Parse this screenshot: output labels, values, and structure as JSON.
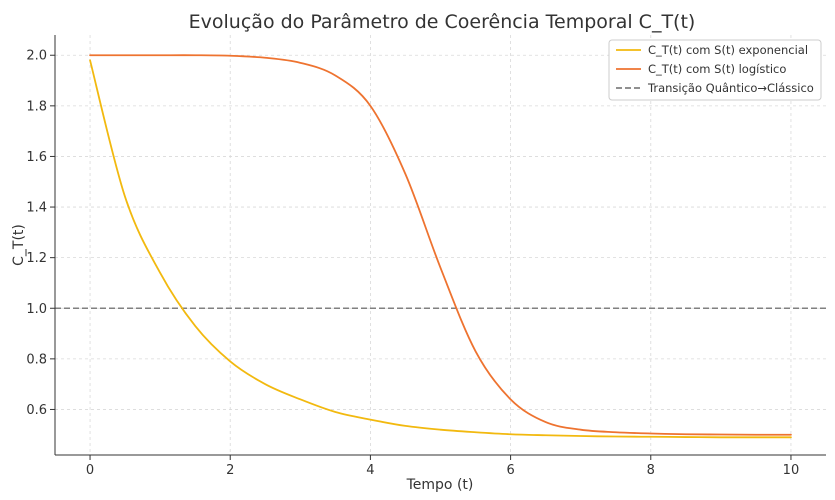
{
  "chart_data": {
    "type": "line",
    "title": "Evolução do Parâmetro de Coerência Temporal C_T(t)",
    "xlabel": "Tempo (t)",
    "ylabel": "C_T(t)",
    "xlim": [
      -0.5,
      10.5
    ],
    "ylim": [
      0.42,
      2.08
    ],
    "xticks": [
      0,
      2,
      4,
      6,
      8,
      10
    ],
    "xtick_labels": [
      "0",
      "2",
      "4",
      "6",
      "8",
      "10"
    ],
    "yticks": [
      0.6,
      0.8,
      1.0,
      1.2,
      1.4,
      1.6,
      1.8,
      2.0
    ],
    "ytick_labels": [
      "0.6",
      "0.8",
      "1.0",
      "1.2",
      "1.4",
      "1.6",
      "1.8",
      "2.0"
    ],
    "grid": true,
    "legend_position": "top-right",
    "x": [
      0,
      0.5,
      1,
      1.5,
      2,
      2.5,
      3,
      3.5,
      4,
      4.5,
      5,
      5.5,
      6,
      6.5,
      7,
      7.5,
      8,
      8.5,
      9,
      9.5,
      10
    ],
    "series": [
      {
        "name": "C_T(t) com S(t) exponencial",
        "color": "#f2b90f",
        "style": "solid",
        "values": [
          1.98,
          1.44,
          1.14,
          0.93,
          0.79,
          0.7,
          0.64,
          0.59,
          0.56,
          0.535,
          0.52,
          0.51,
          0.502,
          0.498,
          0.495,
          0.493,
          0.492,
          0.491,
          0.49,
          0.49,
          0.49
        ]
      },
      {
        "name": "C_T(t) com S(t) logístico",
        "color": "#ee7330",
        "style": "solid",
        "values": [
          2.0,
          2.0,
          2.0,
          2.0,
          1.998,
          1.99,
          1.97,
          1.92,
          1.8,
          1.53,
          1.16,
          0.83,
          0.64,
          0.55,
          0.52,
          0.51,
          0.505,
          0.502,
          0.501,
          0.5,
          0.5
        ]
      },
      {
        "name": "Transição Quântico→Clássico",
        "color": "#808080",
        "style": "dashed",
        "values": [
          1.0,
          1.0,
          1.0,
          1.0,
          1.0,
          1.0,
          1.0,
          1.0,
          1.0,
          1.0,
          1.0,
          1.0,
          1.0,
          1.0,
          1.0,
          1.0,
          1.0,
          1.0,
          1.0,
          1.0,
          1.0
        ]
      }
    ]
  }
}
